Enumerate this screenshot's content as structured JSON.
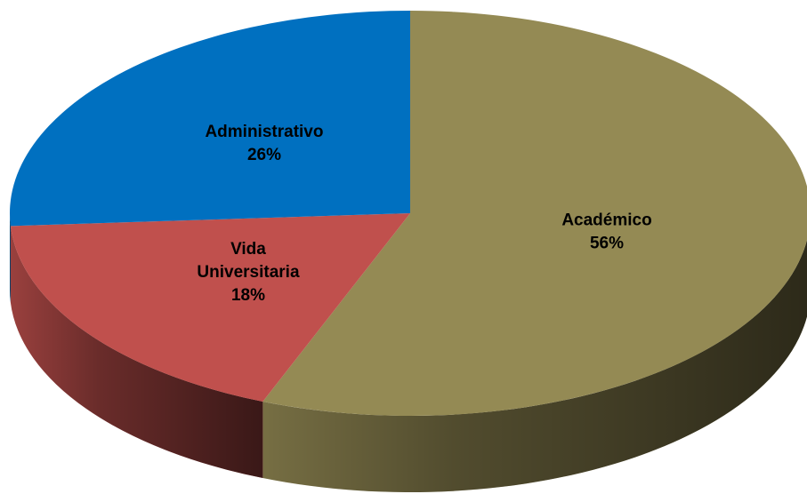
{
  "chart_data": {
    "type": "pie3d",
    "categories": [
      "Académico",
      "Vida Universitaria",
      "Administrativo"
    ],
    "values": [
      56,
      18,
      26
    ],
    "value_labels": [
      "56%",
      "18%",
      "26%"
    ],
    "colors": [
      "#948a54",
      "#c0504d",
      "#0070c0"
    ]
  }
}
